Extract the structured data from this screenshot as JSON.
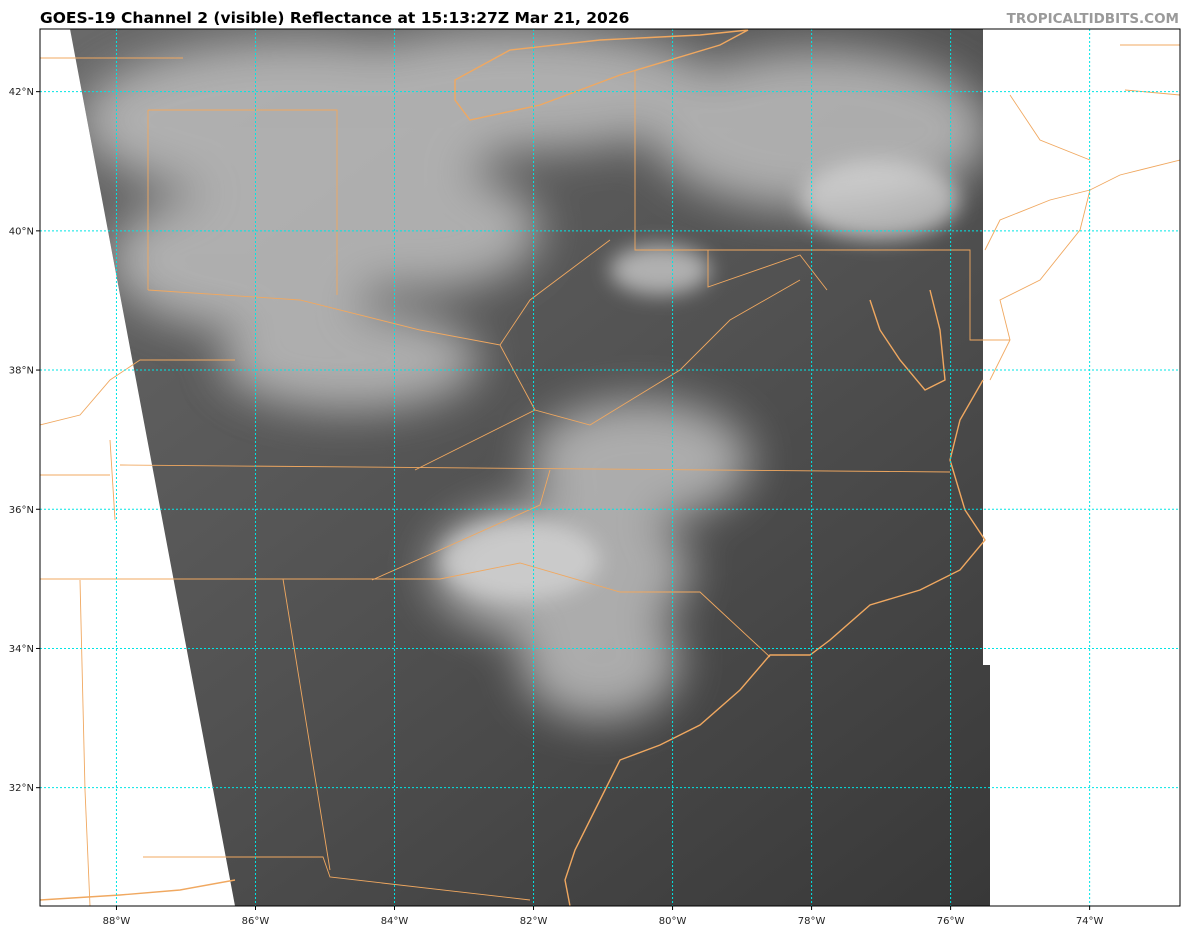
{
  "header": {
    "title": "GOES-19 Channel 2 (visible) Reflectance at 15:13:27Z Mar 21, 2026",
    "credit": "TROPICALTIDBITS.COM"
  },
  "map": {
    "projection": "plate carree",
    "lon_range": [
      -89.1,
      -72.7
    ],
    "lat_range": [
      30.3,
      42.9
    ],
    "gridline_color": "#00e5e5",
    "border_color": "#f0a860",
    "longitude_ticks": [
      {
        "value": -88,
        "label": "88°W"
      },
      {
        "value": -86,
        "label": "86°W"
      },
      {
        "value": -84,
        "label": "84°W"
      },
      {
        "value": -82,
        "label": "82°W"
      },
      {
        "value": -80,
        "label": "80°W"
      },
      {
        "value": -78,
        "label": "78°W"
      },
      {
        "value": -76,
        "label": "76°W"
      },
      {
        "value": -74,
        "label": "74°W"
      }
    ],
    "latitude_ticks": [
      {
        "value": 42,
        "label": "42°N"
      },
      {
        "value": 40,
        "label": "40°N"
      },
      {
        "value": 38,
        "label": "38°N"
      },
      {
        "value": 36,
        "label": "36°N"
      },
      {
        "value": 34,
        "label": "34°N"
      },
      {
        "value": 32,
        "label": "32°N"
      }
    ]
  }
}
